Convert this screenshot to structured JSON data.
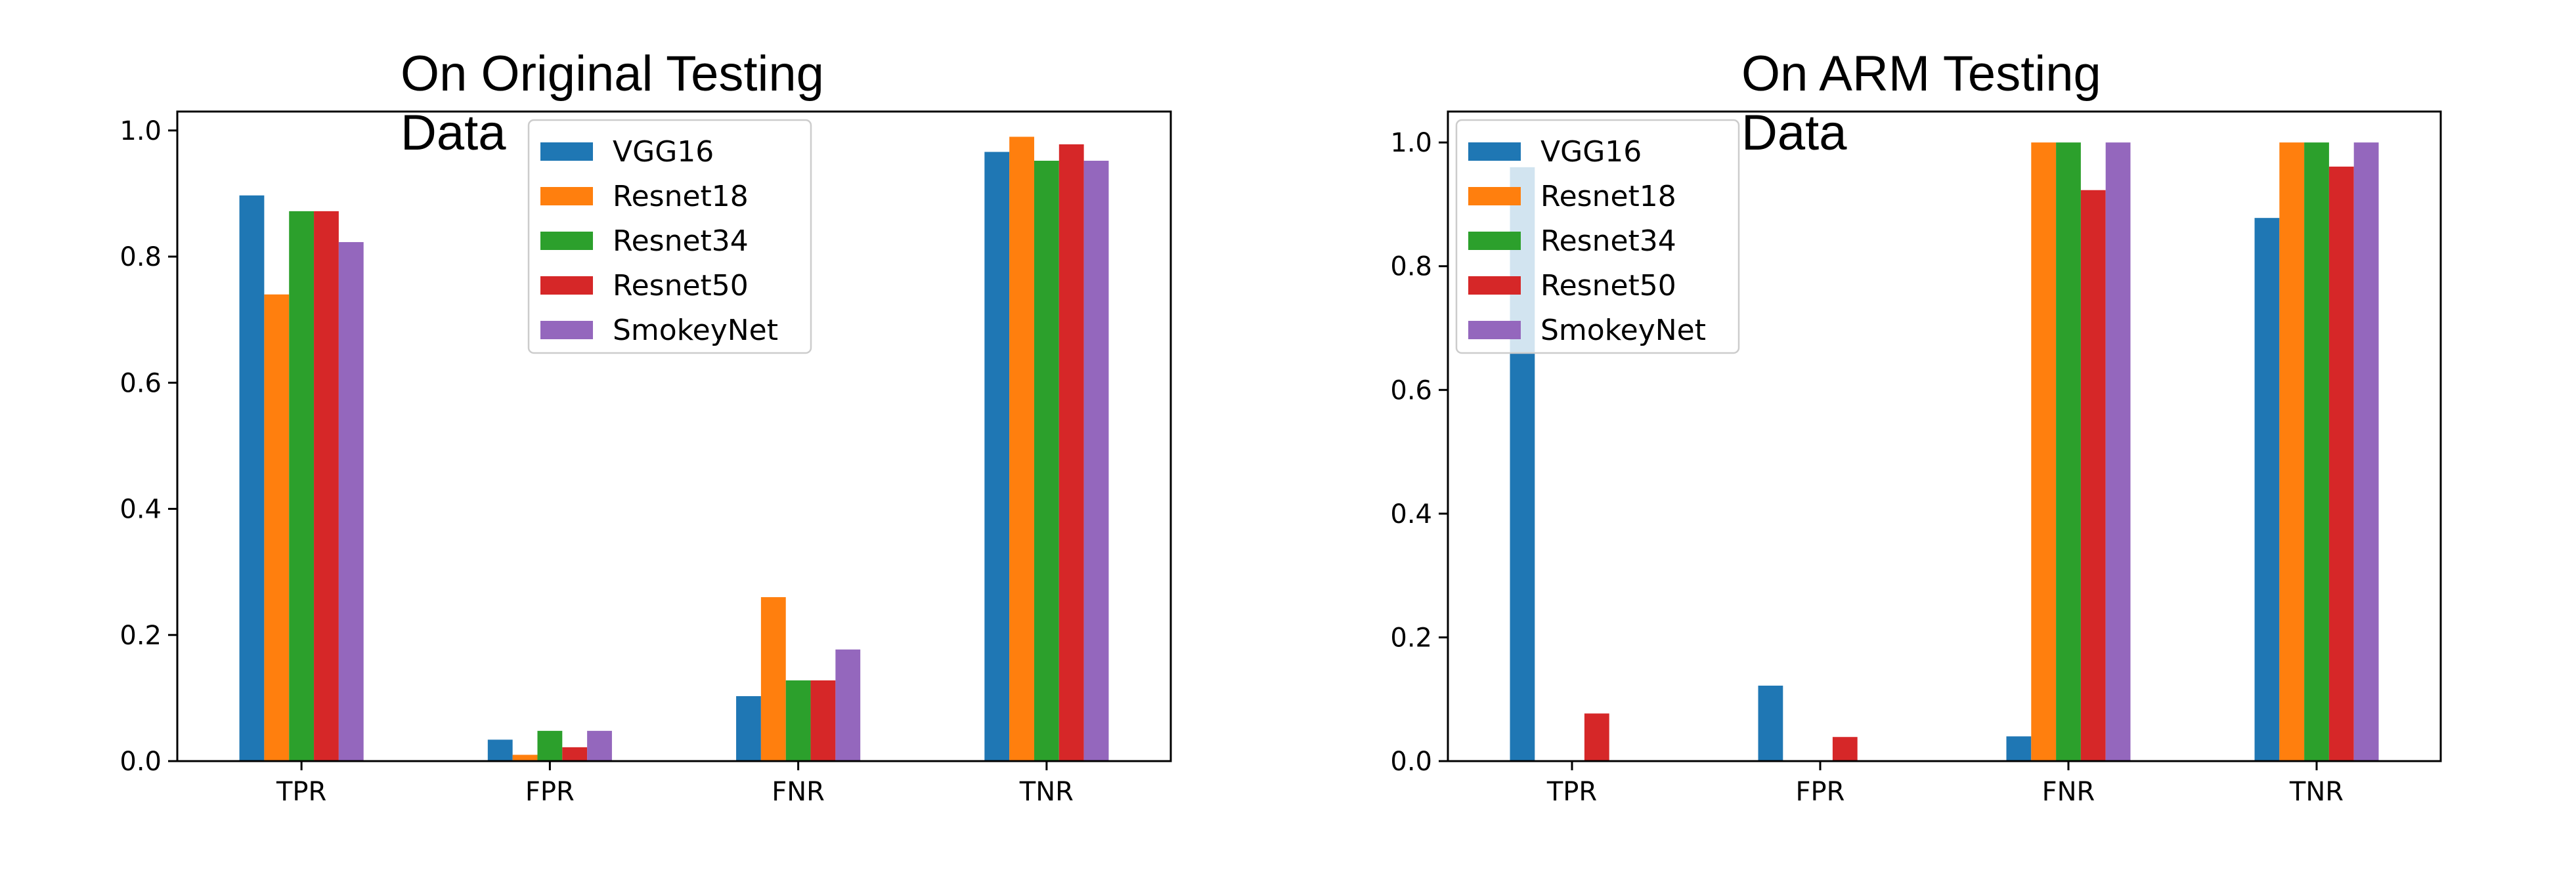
{
  "chart_data": [
    {
      "type": "bar",
      "title_lines": [
        "On Original Testing",
        "Data"
      ],
      "categories": [
        "TPR",
        "FPR",
        "FNR",
        "TNR"
      ],
      "ylim": [
        0,
        1.03
      ],
      "yticks": [
        "0.0",
        "0.2",
        "0.4",
        "0.6",
        "0.8",
        "1.0"
      ],
      "grid": false,
      "legend_position": "upper-center",
      "series": [
        {
          "name": "VGG16",
          "color": "#1f77b4",
          "values": [
            0.897,
            0.034,
            0.103,
            0.966
          ]
        },
        {
          "name": "Resnet18",
          "color": "#ff7f0e",
          "values": [
            0.74,
            0.01,
            0.26,
            0.99
          ]
        },
        {
          "name": "Resnet34",
          "color": "#2ca02c",
          "values": [
            0.872,
            0.048,
            0.128,
            0.952
          ]
        },
        {
          "name": "Resnet50",
          "color": "#d62728",
          "values": [
            0.872,
            0.022,
            0.128,
            0.978
          ]
        },
        {
          "name": "SmokeyNet",
          "color": "#9467bd",
          "values": [
            0.823,
            0.048,
            0.177,
            0.952
          ]
        }
      ]
    },
    {
      "type": "bar",
      "title_lines": [
        "On ARM Testing",
        "Data"
      ],
      "categories": [
        "TPR",
        "FPR",
        "FNR",
        "TNR"
      ],
      "ylim": [
        0,
        1.05
      ],
      "yticks": [
        "0.0",
        "0.2",
        "0.4",
        "0.6",
        "0.8",
        "1.0"
      ],
      "grid": false,
      "legend_position": "upper-left",
      "series": [
        {
          "name": "VGG16",
          "color": "#1f77b4",
          "values": [
            0.96,
            0.122,
            0.04,
            0.878
          ]
        },
        {
          "name": "Resnet18",
          "color": "#ff7f0e",
          "values": [
            0.0,
            0.0,
            1.0,
            1.0
          ]
        },
        {
          "name": "Resnet34",
          "color": "#2ca02c",
          "values": [
            0.0,
            0.0,
            1.0,
            1.0
          ]
        },
        {
          "name": "Resnet50",
          "color": "#d62728",
          "values": [
            0.077,
            0.039,
            0.923,
            0.961
          ]
        },
        {
          "name": "SmokeyNet",
          "color": "#9467bd",
          "values": [
            0.0,
            0.0,
            1.0,
            1.0
          ]
        }
      ]
    }
  ]
}
